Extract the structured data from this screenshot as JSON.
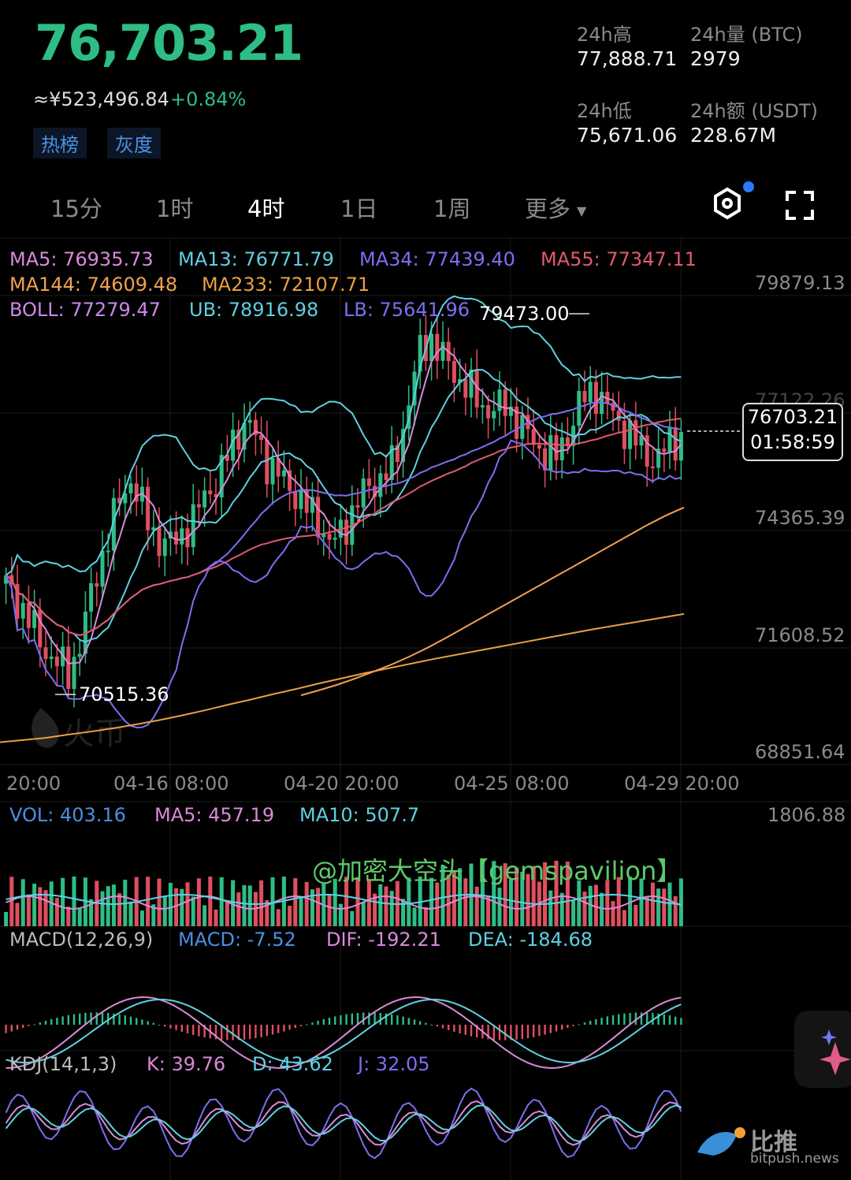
{
  "header": {
    "last_price": "76,703.21",
    "cny_price": "≈¥523,496.84",
    "change": "+0.84%",
    "tags": [
      "热榜",
      "灰度"
    ],
    "stats": [
      {
        "label": "24h高",
        "value": "77,888.71"
      },
      {
        "label": "24h量 (BTC)",
        "value": "2979"
      },
      {
        "label": "24h低",
        "value": "75,671.06"
      },
      {
        "label": "24h额 (USDT)",
        "value": "228.67M"
      }
    ]
  },
  "timeframes": {
    "items": [
      "15分",
      "1时",
      "4时",
      "1日",
      "1周"
    ],
    "more": "更多",
    "active": "4时"
  },
  "icons": {
    "settings": "gear-hex-icon",
    "fullscreen": "fullscreen-corners-icon",
    "dot_color": "#2979ff"
  },
  "indicators": {
    "ma5": "MA5: 76935.73",
    "ma13": "MA13: 76771.79",
    "ma34": "MA34: 77439.40",
    "ma55": "MA55: 77347.11",
    "ma144": "MA144: 74609.48",
    "ma233": "MA233: 72107.71",
    "boll": "BOLL: 77279.47",
    "ub": "UB: 78916.98",
    "lb": "LB: 75641.96"
  },
  "colors": {
    "up": "#2ebd85",
    "down": "#e04f5f",
    "ma5": "#d98ad9",
    "ma13": "#5fd0e0",
    "ma34": "#7b6ff0",
    "ma55": "#e05a6e",
    "ma144": "#f0a050",
    "ma233": "#e8a040",
    "boll": "#c98ae8",
    "ub": "#5fd0e0",
    "lb": "#7b6ff0"
  },
  "chart_data": {
    "type": "candlestick",
    "y_axis": [
      "79879.13",
      "77122.26",
      "74365.39",
      "71608.52",
      "68851.64"
    ],
    "x_axis": [
      "20:00",
      "04-16 08:00",
      "04-20 20:00",
      "04-25 08:00",
      "04-29 20:00"
    ],
    "high_marker": "79473.00",
    "low_marker": "70515.36",
    "current_price": "76703.21",
    "countdown": "01:58:59",
    "close_series": [
      72800,
      72400,
      71900,
      71300,
      71000,
      70700,
      71500,
      72800,
      73800,
      74700,
      75300,
      74500,
      73900,
      73700,
      74000,
      74300,
      75000,
      75200,
      76100,
      76600,
      76300,
      75600,
      75300,
      75000,
      74600,
      74300,
      73700,
      74100,
      74700,
      75100,
      75300,
      75600,
      76800,
      78200,
      78600,
      78100,
      77700,
      77400,
      77000,
      76900,
      77000,
      76600,
      76200,
      75900,
      75800,
      76400,
      77100,
      77400,
      77000,
      76600,
      76300,
      75900,
      75700,
      76100,
      76300
    ],
    "ma233_series": [
      69100,
      69150,
      69200,
      69280,
      69350,
      69430,
      69520,
      69620,
      69730,
      69850,
      69980,
      70100,
      70230,
      70350,
      70480,
      70600,
      70720,
      70830,
      70940,
      71050,
      71150,
      71250,
      71350,
      71450,
      71550,
      71650,
      71750,
      71840,
      71930,
      72020,
      72110
    ],
    "ma144_series": [
      70200,
      70320,
      70450,
      70600,
      70760,
      70930,
      71120,
      71330,
      71560,
      71800,
      72040,
      72280,
      72520,
      72760,
      73000,
      73240,
      73480,
      73720,
      73960,
      74200,
      74420,
      74609
    ]
  },
  "volume": {
    "vol": "VOL: 403.16",
    "ma5": "MA5: 457.19",
    "ma10": "MA10: 507.7",
    "max": "1806.88",
    "watermark": "@加密大空头【gemspavilion】"
  },
  "macd": {
    "title": "MACD(12,26,9)",
    "macd": "MACD: -7.52",
    "dif": "DIF: -192.21",
    "dea": "DEA: -184.68"
  },
  "kdj": {
    "title": "KDJ(14,1,3)",
    "k": "K: 39.76",
    "d": "D: 43.62",
    "j": "J: 32.05"
  },
  "branding": {
    "bottom_name": "比推",
    "bottom_url": "bitpush.news",
    "chart_watermark": "火币"
  }
}
